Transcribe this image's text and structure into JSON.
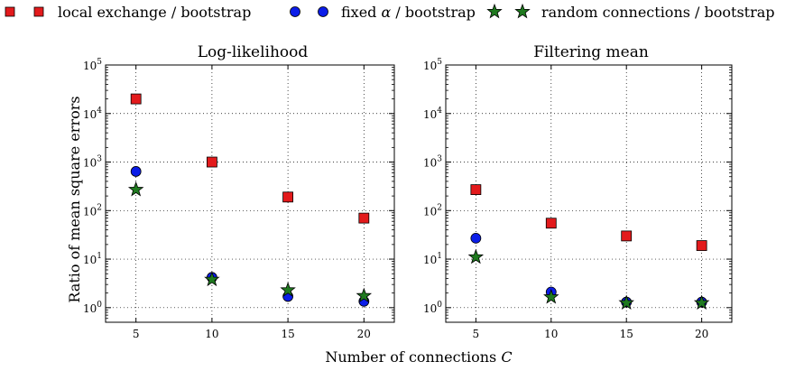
{
  "legend": {
    "entries": [
      {
        "label": "local exchange / bootstrap",
        "color": "#e31a1c",
        "marker": "square"
      },
      {
        "label_prefix": "fixed ",
        "label_symbol": "α",
        "label_suffix": " / bootstrap",
        "color": "#0b1de8",
        "marker": "circle"
      },
      {
        "label": "random connections / bootstrap",
        "color": "#1f7a1f",
        "marker": "star"
      }
    ]
  },
  "xaxis_label": {
    "text": "Number of connections ",
    "symbol": "C"
  },
  "ylabel": "Ratio of mean square errors",
  "chart_data": [
    {
      "type": "scatter",
      "title": "Log-likelihood",
      "xlabel": "Number of connections C",
      "ylabel": "Ratio of mean square errors",
      "x": [
        5,
        10,
        15,
        20
      ],
      "xlim": [
        3,
        22
      ],
      "ylim": [
        0.5,
        100000
      ],
      "yscale": "log",
      "xticks": [
        5,
        10,
        15,
        20
      ],
      "yticks": [
        {
          "base": "10",
          "exp": "0"
        },
        {
          "base": "10",
          "exp": "1"
        },
        {
          "base": "10",
          "exp": "2"
        },
        {
          "base": "10",
          "exp": "3"
        },
        {
          "base": "10",
          "exp": "4"
        },
        {
          "base": "10",
          "exp": "5"
        }
      ],
      "grid": true,
      "series": [
        {
          "name": "local exchange / bootstrap",
          "values": [
            20000,
            1000,
            190,
            70
          ]
        },
        {
          "name": "fixed α / bootstrap",
          "values": [
            640,
            4.2,
            1.7,
            1.35
          ]
        },
        {
          "name": "random connections / bootstrap",
          "values": [
            270,
            3.8,
            2.3,
            1.75
          ]
        }
      ]
    },
    {
      "type": "scatter",
      "title": "Filtering mean",
      "xlabel": "Number of connections C",
      "ylabel": "",
      "x": [
        5,
        10,
        15,
        20
      ],
      "xlim": [
        3,
        22
      ],
      "ylim": [
        0.5,
        100000
      ],
      "yscale": "log",
      "xticks": [
        5,
        10,
        15,
        20
      ],
      "yticks": [
        {
          "base": "10",
          "exp": "0"
        },
        {
          "base": "10",
          "exp": "1"
        },
        {
          "base": "10",
          "exp": "2"
        },
        {
          "base": "10",
          "exp": "3"
        },
        {
          "base": "10",
          "exp": "4"
        },
        {
          "base": "10",
          "exp": "5"
        }
      ],
      "grid": true,
      "series": [
        {
          "name": "local exchange / bootstrap",
          "values": [
            270,
            55,
            30,
            19
          ]
        },
        {
          "name": "fixed α / bootstrap",
          "values": [
            27,
            2.1,
            1.3,
            1.3
          ]
        },
        {
          "name": "random connections / bootstrap",
          "values": [
            11,
            1.65,
            1.25,
            1.25
          ]
        }
      ]
    }
  ]
}
